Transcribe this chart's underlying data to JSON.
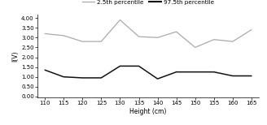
{
  "x": [
    110,
    115,
    120,
    125,
    130,
    135,
    140,
    145,
    150,
    155,
    160,
    165
  ],
  "y_25th": [
    3.2,
    3.1,
    2.8,
    2.8,
    3.9,
    3.05,
    3.0,
    3.3,
    2.5,
    2.9,
    2.8,
    3.4
  ],
  "y_975th": [
    1.35,
    1.0,
    0.95,
    0.95,
    1.55,
    1.55,
    0.9,
    1.25,
    1.25,
    1.25,
    1.05,
    1.05
  ],
  "xlabel": "Height (cm)",
  "ylabel": "l(V)",
  "yticks": [
    0.0,
    0.5,
    1.0,
    1.5,
    2.0,
    2.5,
    3.0,
    3.5,
    4.0
  ],
  "xticks": [
    110,
    115,
    120,
    125,
    130,
    135,
    140,
    145,
    150,
    155,
    160,
    165
  ],
  "ylim": [
    -0.05,
    4.15
  ],
  "xlim": [
    108,
    167
  ],
  "color_25th": "#aaaaaa",
  "color_975th": "#111111",
  "legend_25th": "2.5th percentile",
  "legend_975th": "97.5th percentile",
  "axis_fontsize": 5.5,
  "tick_fontsize": 5.0,
  "legend_fontsize": 5.2
}
